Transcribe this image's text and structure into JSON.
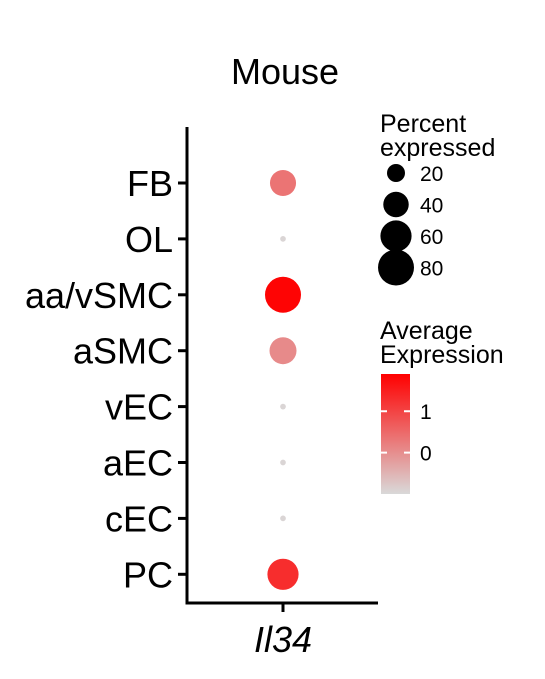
{
  "chart_data": {
    "type": "dot",
    "title": "Mouse",
    "categories": [
      "FB",
      "OL",
      "aa/vSMC",
      "aSMC",
      "vEC",
      "aEC",
      "cEC",
      "PC"
    ],
    "x_categories": [
      "Il34"
    ],
    "percent_expressed": [
      42,
      2,
      80,
      45,
      2,
      2,
      2,
      60
    ],
    "average_expression": [
      0.35,
      -0.95,
      1.85,
      0.05,
      -0.95,
      -0.95,
      -0.95,
      1.3
    ],
    "size_legend": {
      "title_line1": "Percent",
      "title_line2": "expressed",
      "breaks": [
        20,
        40,
        60,
        80
      ],
      "labels": [
        "20",
        "40",
        "60",
        "80"
      ]
    },
    "color_legend": {
      "title_line1": "Average",
      "title_line2": "Expression",
      "range": [
        -1,
        1.9
      ],
      "breaks": [
        1,
        0
      ],
      "labels": [
        "1",
        "0"
      ],
      "low_color": "#d9d9d9",
      "high_color": "#ff0000"
    },
    "axis_color": "#000000"
  }
}
